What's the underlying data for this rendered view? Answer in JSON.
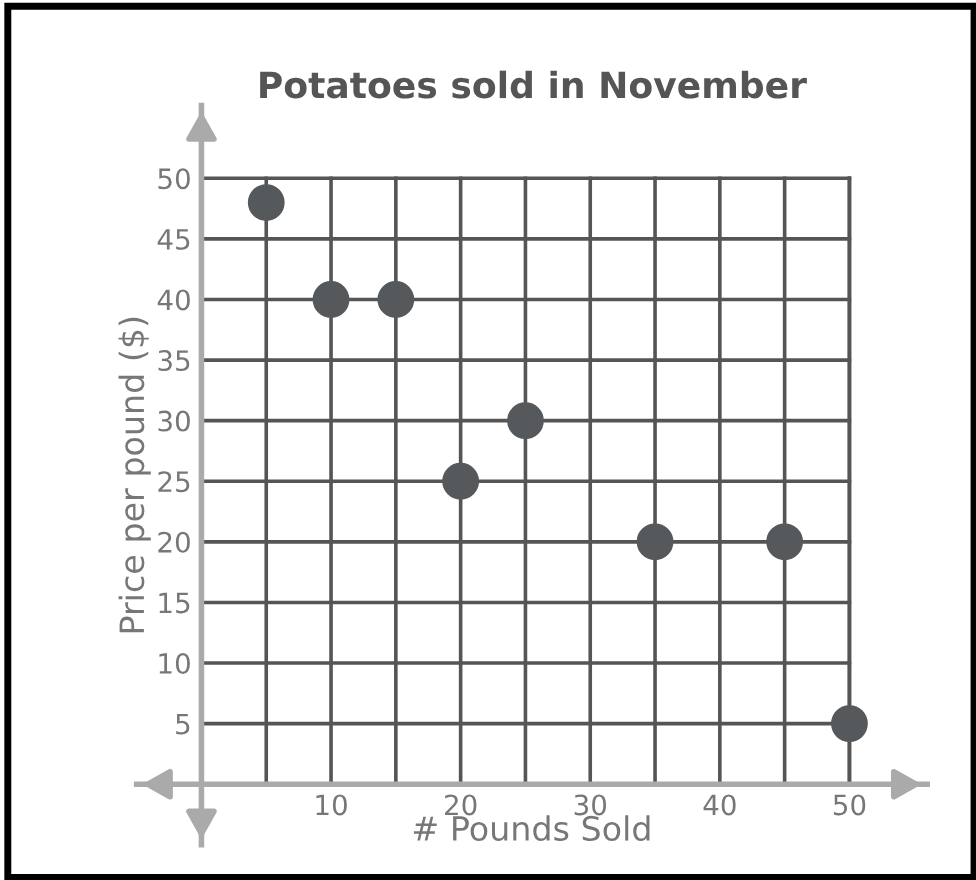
{
  "chart_data": {
    "type": "scatter",
    "title": "Potatoes sold in November",
    "xlabel": "# Pounds Sold",
    "ylabel": "Price per pound ($)",
    "x": [
      5,
      10,
      15,
      20,
      25,
      35,
      45,
      50
    ],
    "series": [
      {
        "color": "#55595c",
        "values": [
          48,
          40,
          40,
          25,
          30,
          20,
          20,
          5
        ]
      }
    ],
    "marker": "circle",
    "xlim": [
      -5,
      56
    ],
    "ylim": [
      -5,
      56
    ],
    "xticks": [
      {
        "value": 5,
        "label": null
      },
      10,
      {
        "value": 15,
        "label": null
      },
      20,
      {
        "value": 25,
        "label": null
      },
      30,
      {
        "value": 35,
        "label": null
      },
      40,
      {
        "value": 45,
        "label": null
      },
      50
    ],
    "yticks": [
      5,
      10,
      15,
      20,
      25,
      30,
      35,
      40,
      45,
      50
    ],
    "grid": true
  }
}
